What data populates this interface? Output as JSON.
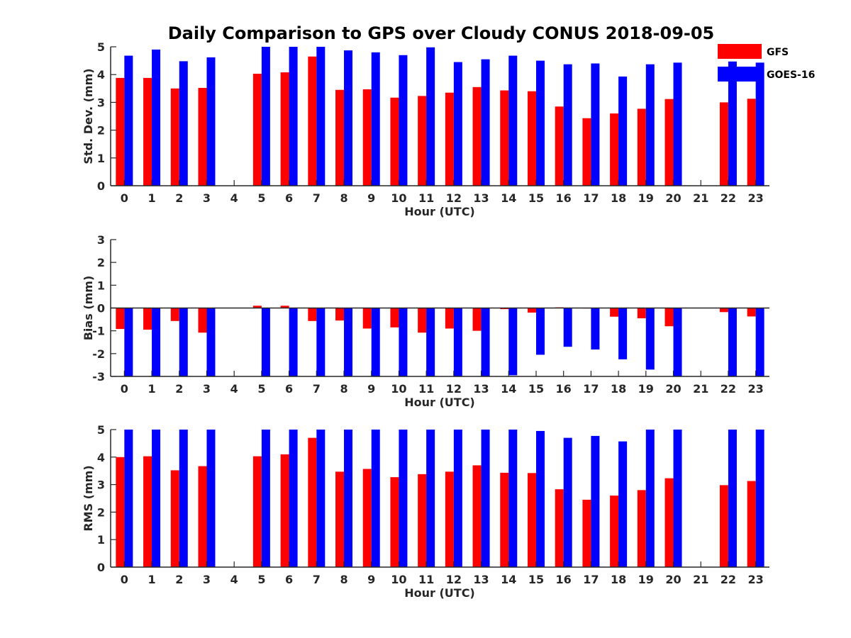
{
  "title": "Daily Comparison to GPS over Cloudy CONUS 2018-09-05",
  "colors": {
    "GFS": "#ff0000",
    "GOES-16": "#0000ff",
    "axis": "#262626"
  },
  "legend": {
    "placement": "top-right",
    "entries": [
      "GFS",
      "GOES-16"
    ]
  },
  "chart_data": [
    {
      "type": "bar",
      "xlabel": "Hour (UTC)",
      "ylabel": "Std. Dev. (mm)",
      "ylim": [
        0,
        5
      ],
      "yticks": [
        0,
        1,
        2,
        3,
        4,
        5
      ],
      "categories": [
        "0",
        "1",
        "2",
        "3",
        "4",
        "5",
        "6",
        "7",
        "8",
        "9",
        "10",
        "11",
        "12",
        "13",
        "14",
        "15",
        "16",
        "17",
        "18",
        "19",
        "20",
        "21",
        "22",
        "23"
      ],
      "series": [
        {
          "name": "GFS",
          "values": [
            3.88,
            3.88,
            3.5,
            3.52,
            null,
            4.03,
            4.08,
            4.65,
            3.45,
            3.47,
            3.17,
            3.23,
            3.35,
            3.55,
            3.43,
            3.4,
            2.85,
            2.43,
            2.6,
            2.77,
            3.12,
            null,
            3.0,
            3.13
          ]
        },
        {
          "name": "GOES-16",
          "values": [
            4.68,
            4.9,
            4.48,
            4.62,
            null,
            5.0,
            5.0,
            5.0,
            4.87,
            4.8,
            4.7,
            4.98,
            4.45,
            4.55,
            4.68,
            4.5,
            4.37,
            4.4,
            3.93,
            4.37,
            4.43,
            null,
            4.47,
            4.43
          ]
        }
      ]
    },
    {
      "type": "bar",
      "xlabel": "Hour (UTC)",
      "ylabel": "Bias (mm)",
      "ylim": [
        -3,
        3
      ],
      "yticks": [
        -3,
        -2,
        -1,
        0,
        1,
        2,
        3
      ],
      "categories": [
        "0",
        "1",
        "2",
        "3",
        "4",
        "5",
        "6",
        "7",
        "8",
        "9",
        "10",
        "11",
        "12",
        "13",
        "14",
        "15",
        "16",
        "17",
        "18",
        "19",
        "20",
        "21",
        "22",
        "23"
      ],
      "series": [
        {
          "name": "GFS",
          "values": [
            -0.92,
            -0.95,
            -0.57,
            -1.08,
            null,
            0.1,
            0.1,
            -0.57,
            -0.55,
            -0.9,
            -0.85,
            -1.08,
            -0.9,
            -1.0,
            -0.05,
            -0.2,
            0.03,
            -0.02,
            -0.38,
            -0.45,
            -0.8,
            null,
            -0.18,
            -0.37
          ]
        },
        {
          "name": "GOES-16",
          "values": [
            -3.0,
            -3.0,
            -3.0,
            -3.0,
            null,
            -3.0,
            -3.0,
            -3.0,
            -3.0,
            -3.0,
            -3.0,
            -3.0,
            -3.0,
            -3.0,
            -2.95,
            -2.05,
            -1.7,
            -1.82,
            -2.25,
            -2.7,
            -3.0,
            null,
            -3.0,
            -3.0
          ]
        }
      ]
    },
    {
      "type": "bar",
      "xlabel": "Hour (UTC)",
      "ylabel": "RMS (mm)",
      "ylim": [
        0,
        5
      ],
      "yticks": [
        0,
        1,
        2,
        3,
        4,
        5
      ],
      "categories": [
        "0",
        "1",
        "2",
        "3",
        "4",
        "5",
        "6",
        "7",
        "8",
        "9",
        "10",
        "11",
        "12",
        "13",
        "14",
        "15",
        "16",
        "17",
        "18",
        "19",
        "20",
        "21",
        "22",
        "23"
      ],
      "series": [
        {
          "name": "GFS",
          "values": [
            4.0,
            4.03,
            3.52,
            3.67,
            null,
            4.03,
            4.1,
            4.7,
            3.47,
            3.57,
            3.27,
            3.38,
            3.47,
            3.7,
            3.43,
            3.42,
            2.83,
            2.45,
            2.6,
            2.8,
            3.23,
            null,
            2.98,
            3.13
          ]
        },
        {
          "name": "GOES-16",
          "values": [
            5.0,
            5.0,
            5.0,
            5.0,
            null,
            5.0,
            5.0,
            5.0,
            5.0,
            5.0,
            5.0,
            5.0,
            5.0,
            5.0,
            5.0,
            4.95,
            4.7,
            4.77,
            4.57,
            5.0,
            5.0,
            null,
            5.0,
            5.0
          ]
        }
      ]
    }
  ]
}
